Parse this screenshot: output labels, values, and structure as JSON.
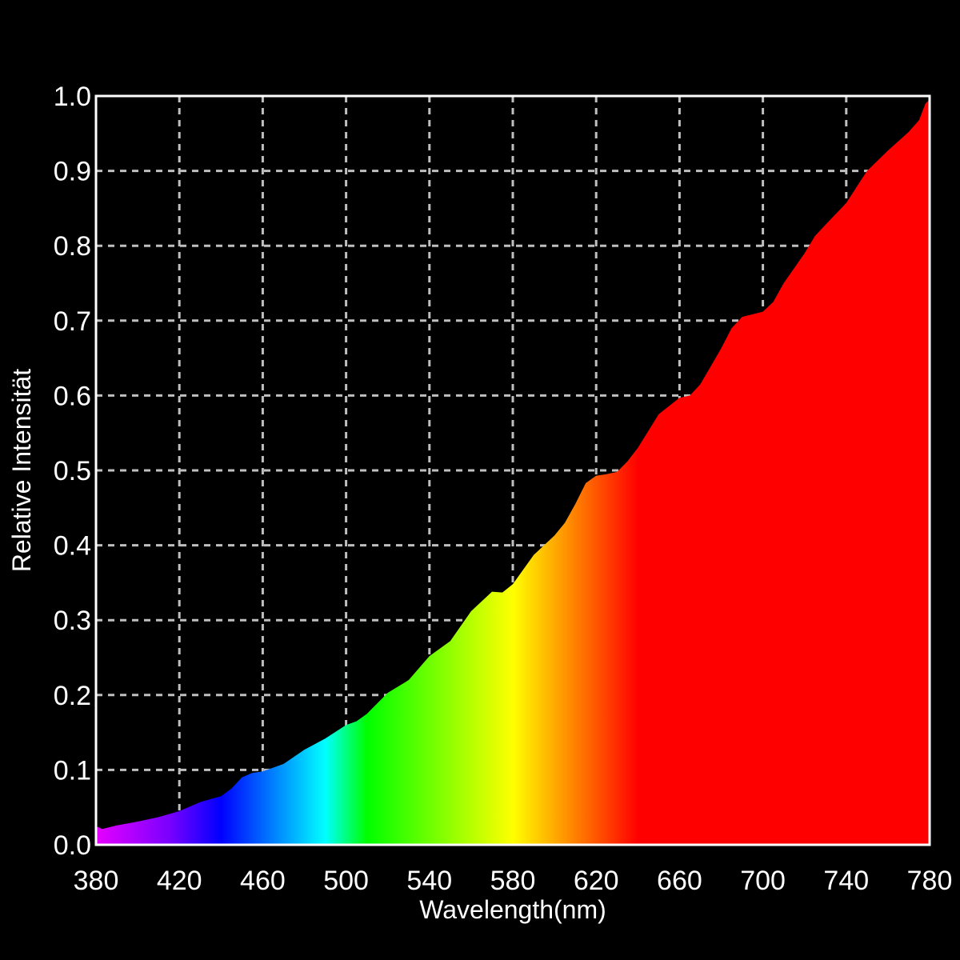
{
  "chart_data": {
    "type": "area",
    "title": "",
    "xlabel": "Wavelength(nm)",
    "ylabel": "Relative Intensität",
    "xlim": [
      380,
      780
    ],
    "ylim": [
      0.0,
      1.0
    ],
    "x_ticks": [
      "380",
      "420",
      "460",
      "500",
      "540",
      "580",
      "620",
      "660",
      "700",
      "740",
      "780"
    ],
    "y_ticks": [
      "0.0",
      "0.1",
      "0.2",
      "0.3",
      "0.4",
      "0.5",
      "0.6",
      "0.7",
      "0.8",
      "0.9",
      "1.0"
    ],
    "grid": true,
    "fill": "spectral-gradient",
    "spectrum_colors": [
      {
        "wavelength": 380,
        "color": "#e600ff"
      },
      {
        "wavelength": 415,
        "color": "#7a00ff"
      },
      {
        "wavelength": 440,
        "color": "#0000ff"
      },
      {
        "wavelength": 490,
        "color": "#00ffff"
      },
      {
        "wavelength": 510,
        "color": "#00ff00"
      },
      {
        "wavelength": 580,
        "color": "#ffff00"
      },
      {
        "wavelength": 610,
        "color": "#ff8000"
      },
      {
        "wavelength": 640,
        "color": "#ff0000"
      },
      {
        "wavelength": 780,
        "color": "#ff0000"
      }
    ],
    "series": [
      {
        "x": [
          380,
          383,
          390,
          400,
          410,
          420,
          430,
          440,
          445,
          450,
          455,
          460,
          470,
          480,
          490,
          500,
          505,
          510,
          520,
          530,
          540,
          545,
          550,
          560,
          570,
          575,
          580,
          590,
          600,
          605,
          610,
          615,
          620,
          625,
          630,
          635,
          640,
          650,
          660,
          665,
          670,
          680,
          685,
          690,
          700,
          705,
          710,
          720,
          725,
          730,
          740,
          750,
          760,
          770,
          775,
          778,
          780
        ],
        "y": [
          0.025,
          0.021,
          0.026,
          0.031,
          0.037,
          0.045,
          0.057,
          0.065,
          0.075,
          0.09,
          0.096,
          0.098,
          0.108,
          0.127,
          0.142,
          0.16,
          0.165,
          0.175,
          0.203,
          0.22,
          0.252,
          0.262,
          0.272,
          0.312,
          0.338,
          0.337,
          0.348,
          0.387,
          0.413,
          0.43,
          0.455,
          0.483,
          0.493,
          0.495,
          0.498,
          0.512,
          0.53,
          0.575,
          0.597,
          0.6,
          0.615,
          0.663,
          0.69,
          0.705,
          0.712,
          0.725,
          0.75,
          0.79,
          0.813,
          0.828,
          0.857,
          0.9,
          0.927,
          0.952,
          0.968,
          0.99,
          0.995
        ]
      }
    ]
  }
}
